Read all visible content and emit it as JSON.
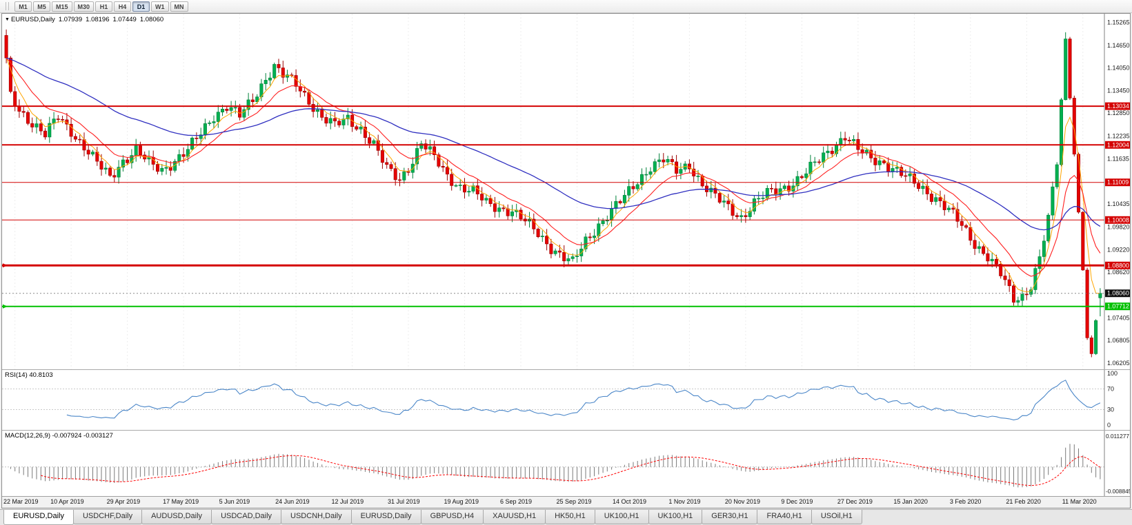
{
  "toolbar": {
    "timeframes": [
      {
        "label": "M1",
        "active": false
      },
      {
        "label": "M5",
        "active": false
      },
      {
        "label": "M15",
        "active": false
      },
      {
        "label": "M30",
        "active": false
      },
      {
        "label": "H1",
        "active": false
      },
      {
        "label": "H4",
        "active": false
      },
      {
        "label": "D1",
        "active": true
      },
      {
        "label": "W1",
        "active": false
      },
      {
        "label": "MN",
        "active": false
      }
    ]
  },
  "chart": {
    "symbol": "EURUSD,Daily",
    "ohlc": {
      "open": "1.07939",
      "high": "1.08196",
      "low": "1.07449",
      "close": "1.08060"
    },
    "y_axis": {
      "max": 1.1549,
      "min": 1.0604,
      "ticks": [
        "1.15265",
        "1.14650",
        "1.14050",
        "1.13450",
        "1.12850",
        "1.12235",
        "1.11635",
        "1.11035",
        "1.10435",
        "1.09820",
        "1.09220",
        "1.08620",
        "1.07405",
        "1.06805",
        "1.06205"
      ]
    },
    "levels": [
      {
        "price": 1.13034,
        "label": "1.13034",
        "color": "#d40000",
        "width": 2,
        "marker": false
      },
      {
        "price": 1.12004,
        "label": "1.12004",
        "color": "#d40000",
        "width": 2,
        "marker": false
      },
      {
        "price": 1.11009,
        "label": "1.11009",
        "color": "#d40000",
        "width": 1,
        "marker": false
      },
      {
        "price": 1.10008,
        "label": "1.10008",
        "color": "#d40000",
        "width": 1,
        "marker": false
      },
      {
        "price": 1.088,
        "label": "1.08800",
        "color": "#d40000",
        "width": 3,
        "marker": true
      },
      {
        "price": 1.07712,
        "label": "1.07712",
        "color": "#00c000",
        "width": 2,
        "marker": true
      }
    ],
    "current_price": {
      "value": 1.0806,
      "label": "1.08060",
      "color": "#111111"
    },
    "x_labels": [
      "22 Mar 2019",
      "10 Apr 2019",
      "29 Apr 2019",
      "17 May 2019",
      "5 Jun 2019",
      "24 Jun 2019",
      "12 Jul 2019",
      "31 Jul 2019",
      "19 Aug 2019",
      "6 Sep 2019",
      "25 Sep 2019",
      "14 Oct 2019",
      "1 Nov 2019",
      "20 Nov 2019",
      "9 Dec 2019",
      "27 Dec 2019",
      "15 Jan 2020",
      "3 Feb 2020",
      "21 Feb 2020",
      "11 Mar 2020"
    ]
  },
  "rsi": {
    "header": "RSI(14) 40.8103",
    "period": 14,
    "value": 40.8103,
    "ticks": [
      "100",
      "70",
      "30",
      "0"
    ],
    "level_lines": [
      70,
      30
    ]
  },
  "macd": {
    "header": "MACD(12,26,9) -0.007924 -0.003127",
    "params": [
      12,
      26,
      9
    ],
    "macd_value": -0.007924,
    "signal_value": -0.003127,
    "ticks": [
      "0.011277",
      "-0.008845"
    ],
    "scale_max": 0.011277,
    "scale_min": -0.008845
  },
  "tabs": [
    {
      "label": "EURUSD,Daily",
      "active": true
    },
    {
      "label": "USDCHF,Daily",
      "active": false
    },
    {
      "label": "AUDUSD,Daily",
      "active": false
    },
    {
      "label": "USDCAD,Daily",
      "active": false
    },
    {
      "label": "USDCNH,Daily",
      "active": false
    },
    {
      "label": "EURUSD,Daily",
      "active": false
    },
    {
      "label": "GBPUSD,H4",
      "active": false
    },
    {
      "label": "XAUUSD,H1",
      "active": false
    },
    {
      "label": "HK50,H1",
      "active": false
    },
    {
      "label": "UK100,H1",
      "active": false
    },
    {
      "label": "UK100,H1",
      "active": false
    },
    {
      "label": "GER30,H1",
      "active": false
    },
    {
      "label": "FRA40,H1",
      "active": false
    },
    {
      "label": "USOil,H1",
      "active": false
    }
  ],
  "colors": {
    "bull": "#00b050",
    "bull_dark": "#00813a",
    "bear": "#e60000",
    "bear_dark": "#9b0000",
    "ma_fast": "#ffa500",
    "ma_mid": "#ff2020",
    "ma_slow": "#2f2fc0",
    "rsi": "#4a86c8",
    "signal": "#ff0000",
    "hist": "#7a7a7a",
    "level_red": "#d40000",
    "level_green": "#00c000",
    "current": "#111111"
  },
  "chart_data": {
    "type": "candlestick",
    "symbol": "EURUSD",
    "timeframe": "Daily",
    "title": "EURUSD,Daily 1.07939 1.08196 1.07449 1.08060",
    "candle_count": 254,
    "x_label_indices": [
      2,
      15,
      28,
      41,
      54,
      67,
      80,
      93,
      106,
      119,
      132,
      145,
      158,
      171,
      184,
      197,
      210,
      223,
      236,
      249
    ],
    "x_labels": [
      "22 Mar 2019",
      "10 Apr 2019",
      "29 Apr 2019",
      "17 May 2019",
      "5 Jun 2019",
      "24 Jun 2019",
      "12 Jul 2019",
      "31 Jul 2019",
      "19 Aug 2019",
      "6 Sep 2019",
      "25 Sep 2019",
      "14 Oct 2019",
      "1 Nov 2019",
      "20 Nov 2019",
      "9 Dec 2019",
      "27 Dec 2019",
      "15 Jan 2020",
      "3 Feb 2020",
      "21 Feb 2020",
      "11 Mar 2020"
    ],
    "ylim": [
      1.0604,
      1.1549
    ],
    "close_waypoints": [
      [
        0,
        1.142
      ],
      [
        1,
        1.133
      ],
      [
        3,
        1.1295
      ],
      [
        6,
        1.126
      ],
      [
        9,
        1.1225
      ],
      [
        12,
        1.1275
      ],
      [
        15,
        1.124
      ],
      [
        18,
        1.1195
      ],
      [
        21,
        1.115
      ],
      [
        24,
        1.1115
      ],
      [
        27,
        1.116
      ],
      [
        30,
        1.1185
      ],
      [
        33,
        1.115
      ],
      [
        36,
        1.1135
      ],
      [
        39,
        1.116
      ],
      [
        42,
        1.1185
      ],
      [
        45,
        1.123
      ],
      [
        48,
        1.128
      ],
      [
        51,
        1.1305
      ],
      [
        54,
        1.1275
      ],
      [
        57,
        1.132
      ],
      [
        60,
        1.138
      ],
      [
        62,
        1.141
      ],
      [
        64,
        1.1385
      ],
      [
        67,
        1.136
      ],
      [
        70,
        1.132
      ],
      [
        73,
        1.1275
      ],
      [
        76,
        1.125
      ],
      [
        79,
        1.127
      ],
      [
        82,
        1.1245
      ],
      [
        85,
        1.12
      ],
      [
        88,
        1.1135
      ],
      [
        91,
        1.111
      ],
      [
        94,
        1.116
      ],
      [
        96,
        1.1205
      ],
      [
        99,
        1.1165
      ],
      [
        102,
        1.112
      ],
      [
        105,
        1.109
      ],
      [
        108,
        1.1075
      ],
      [
        111,
        1.1045
      ],
      [
        114,
        1.1035
      ],
      [
        117,
        1.1025
      ],
      [
        120,
        1.0995
      ],
      [
        123,
        1.0965
      ],
      [
        126,
        1.093
      ],
      [
        129,
        1.09
      ],
      [
        131,
        1.0885
      ],
      [
        134,
        1.0945
      ],
      [
        137,
        1.099
      ],
      [
        140,
        1.1025
      ],
      [
        143,
        1.106
      ],
      [
        146,
        1.1105
      ],
      [
        149,
        1.1145
      ],
      [
        152,
        1.116
      ],
      [
        155,
        1.113
      ],
      [
        158,
        1.115
      ],
      [
        161,
        1.1095
      ],
      [
        164,
        1.106
      ],
      [
        167,
        1.1035
      ],
      [
        170,
        1.101
      ],
      [
        173,
        1.1045
      ],
      [
        176,
        1.107
      ],
      [
        179,
        1.1085
      ],
      [
        182,
        1.11
      ],
      [
        185,
        1.1125
      ],
      [
        188,
        1.116
      ],
      [
        191,
        1.1195
      ],
      [
        194,
        1.1225
      ],
      [
        197,
        1.1185
      ],
      [
        200,
        1.1165
      ],
      [
        203,
        1.1155
      ],
      [
        206,
        1.113
      ],
      [
        209,
        1.1105
      ],
      [
        212,
        1.1085
      ],
      [
        215,
        1.106
      ],
      [
        218,
        1.1025
      ],
      [
        221,
        1.0985
      ],
      [
        224,
        1.094
      ],
      [
        227,
        1.0905
      ],
      [
        230,
        1.0855
      ],
      [
        233,
        1.079
      ],
      [
        235,
        1.08
      ],
      [
        237,
        1.083
      ],
      [
        239,
        1.09
      ],
      [
        241,
        1.1
      ],
      [
        243,
        1.115
      ],
      [
        244,
        1.132
      ],
      [
        245,
        1.148
      ],
      [
        246,
        1.133
      ],
      [
        247,
        1.118
      ],
      [
        248,
        1.102
      ],
      [
        249,
        1.087
      ],
      [
        250,
        1.069
      ],
      [
        251,
        1.064
      ],
      [
        252,
        1.073
      ],
      [
        253,
        1.0806
      ]
    ],
    "noise": {
      "a1": 0.0011,
      "f1": 1.93,
      "p1": 0.4,
      "a2": 0.0008,
      "f2": 0.571,
      "p2": 2.0,
      "wick": 0.0015,
      "wick_min": 0.0004,
      "calm_from": 243,
      "calm_factor": 0.35
    },
    "overrides": {
      "245": {
        "h": 1.15
      },
      "251": {
        "l": 1.0636
      },
      "253": {
        "o": 1.07939,
        "h": 1.08196,
        "l": 1.07449,
        "c": 1.0806
      }
    },
    "ma_periods": {
      "fast": 5,
      "mid": 13,
      "slow": 50
    },
    "indicators": {
      "rsi_period": 14,
      "macd": [
        12,
        26,
        9
      ]
    }
  }
}
